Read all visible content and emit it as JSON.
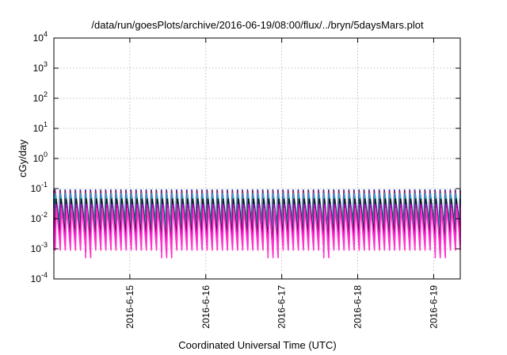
{
  "chart_data": {
    "type": "line",
    "title": "/data/run/goesPlots/archive/2016-06-19/08:00/flux/../bryn/5daysMars.plot",
    "xlabel": "Coordinated Universal Time (UTC)",
    "ylabel": "cGy/day",
    "yscale": "log",
    "ylim": [
      0.0001,
      10000
    ],
    "xlim": [
      14.0,
      19.35
    ],
    "grid": true,
    "y_ticks": [
      {
        "value": 0.0001,
        "base": "10",
        "exp": "-4"
      },
      {
        "value": 0.001,
        "base": "10",
        "exp": "-3"
      },
      {
        "value": 0.01,
        "base": "10",
        "exp": "-2"
      },
      {
        "value": 0.1,
        "base": "10",
        "exp": "-1"
      },
      {
        "value": 1,
        "base": "10",
        "exp": "0"
      },
      {
        "value": 10,
        "base": "10",
        "exp": "1"
      },
      {
        "value": 100,
        "base": "10",
        "exp": "2"
      },
      {
        "value": 1000,
        "base": "10",
        "exp": "3"
      },
      {
        "value": 10000,
        "base": "10",
        "exp": "4"
      }
    ],
    "x_ticks": [
      {
        "value": 15,
        "label": "2016-6-15"
      },
      {
        "value": 16,
        "label": "2016-6-16"
      },
      {
        "value": 17,
        "label": "2016-6-17"
      },
      {
        "value": 18,
        "label": "2016-6-18"
      },
      {
        "value": 19,
        "label": "2016-6-19"
      }
    ],
    "cycle_days": 0.0667,
    "dips": [
      14.42,
      15.45,
      16.85,
      17.53,
      19.05
    ],
    "series": [
      {
        "color": "#1f2db8",
        "peak": 0.09,
        "trough": 0.006
      },
      {
        "color": "#c8102e",
        "peak": 0.08,
        "trough": 0.0045
      },
      {
        "color": "#3a9bd8",
        "peak": 0.07,
        "trough": 0.005
      },
      {
        "color": "#14b8a6",
        "peak": 0.05,
        "trough": 0.0035
      },
      {
        "color": "#111111",
        "peak": 0.045,
        "trough": 0.0025
      },
      {
        "color": "#d400d4",
        "peak": 0.03,
        "trough": 0.0014
      },
      {
        "color": "#ff33cc",
        "peak": 0.022,
        "trough": 0.0009
      }
    ]
  }
}
